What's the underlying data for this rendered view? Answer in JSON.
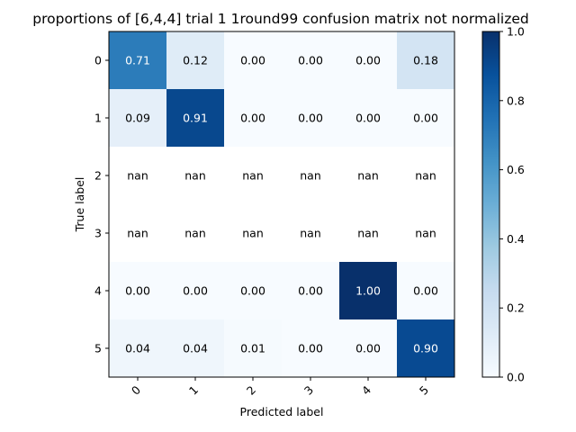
{
  "chart_data": {
    "type": "heatmap",
    "title": "proportions of [6,4,4] trial 1 1round99 confusion matrix not normalized",
    "xlabel": "Predicted label",
    "ylabel": "True label",
    "x_categories": [
      "0",
      "1",
      "2",
      "3",
      "4",
      "5"
    ],
    "y_categories": [
      "0",
      "1",
      "2",
      "3",
      "4",
      "5"
    ],
    "values": [
      [
        0.71,
        0.12,
        0.0,
        0.0,
        0.0,
        0.18
      ],
      [
        0.09,
        0.91,
        0.0,
        0.0,
        0.0,
        0.0
      ],
      [
        null,
        null,
        null,
        null,
        null,
        null
      ],
      [
        null,
        null,
        null,
        null,
        null,
        null
      ],
      [
        0.0,
        0.0,
        0.0,
        0.0,
        1.0,
        0.0
      ],
      [
        0.04,
        0.04,
        0.01,
        0.0,
        0.0,
        0.9
      ]
    ],
    "cell_labels": [
      [
        "0.71",
        "0.12",
        "0.00",
        "0.00",
        "0.00",
        "0.18"
      ],
      [
        "0.09",
        "0.91",
        "0.00",
        "0.00",
        "0.00",
        "0.00"
      ],
      [
        "nan",
        "nan",
        "nan",
        "nan",
        "nan",
        "nan"
      ],
      [
        "nan",
        "nan",
        "nan",
        "nan",
        "nan",
        "nan"
      ],
      [
        "0.00",
        "0.00",
        "0.00",
        "0.00",
        "1.00",
        "0.00"
      ],
      [
        "0.04",
        "0.04",
        "0.01",
        "0.00",
        "0.00",
        "0.90"
      ]
    ],
    "colormap": "Blues",
    "colorbar": {
      "min": 0.0,
      "max": 1.0,
      "ticks": [
        "0.0",
        "0.2",
        "0.4",
        "0.6",
        "0.8",
        "1.0"
      ]
    },
    "x_tick_rotation": 45,
    "grid": false
  }
}
